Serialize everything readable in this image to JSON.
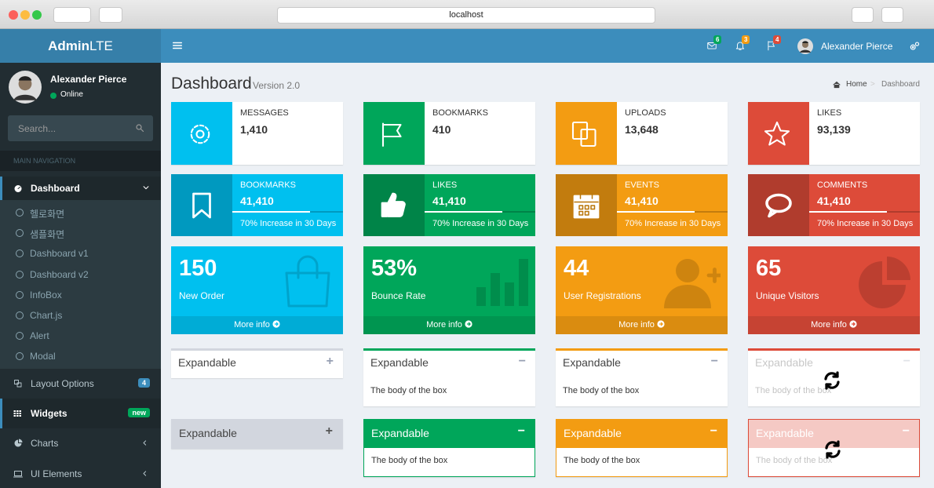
{
  "browser": {
    "url": "localhost"
  },
  "header": {
    "logo_bold": "Admin",
    "logo_light": "LTE",
    "badges": [
      6,
      3,
      4
    ],
    "user": "Alexander Pierce"
  },
  "sidebar": {
    "user_name": "Alexander Pierce",
    "status": "Online",
    "search_placeholder": "Search...",
    "section": "MAIN NAVIGATION",
    "menu": [
      {
        "label": "Dashboard",
        "children": [
          "헬로화면",
          "샘플화면",
          "Dashboard v1",
          "Dashboard v2",
          "InfoBox",
          "Chart.js",
          "Alert",
          "Modal"
        ]
      },
      {
        "label": "Layout Options",
        "badge": 4
      },
      {
        "label": "Widgets",
        "badge": "new"
      },
      {
        "label": "Charts"
      },
      {
        "label": "UI Elements"
      }
    ]
  },
  "page": {
    "title": "Dashboard",
    "subtitle": "Version 2.0",
    "breadcrumb": [
      "Home",
      "Dashboard"
    ]
  },
  "info_boxes": [
    {
      "label": "MESSAGES",
      "value": "1,410"
    },
    {
      "label": "BOOKMARKS",
      "value": "410"
    },
    {
      "label": "UPLOADS",
      "value": "13,648"
    },
    {
      "label": "LIKES",
      "value": "93,139"
    }
  ],
  "progress_boxes": [
    {
      "label": "BOOKMARKS",
      "value": "41,410",
      "description": "70% Increase in 30 Days"
    },
    {
      "label": "LIKES",
      "value": "41,410",
      "description": "70% Increase in 30 Days"
    },
    {
      "label": "EVENTS",
      "value": "41,410",
      "description": "70% Increase in 30 Days"
    },
    {
      "label": "COMMENTS",
      "value": "41,410",
      "description": "70% Increase in 30 Days"
    }
  ],
  "small_boxes": [
    {
      "value": "150",
      "label": "New Order",
      "footer": "More info"
    },
    {
      "value": "53%",
      "label": "Bounce Rate",
      "footer": "More info"
    },
    {
      "value": "44",
      "label": "User Registrations",
      "footer": "More info"
    },
    {
      "value": "65",
      "label": "Unique Visitors",
      "footer": "More info"
    }
  ],
  "boxes": [
    [
      {
        "title": "Expandable"
      },
      {
        "title": "Expandable",
        "body": "The body of the box"
      },
      {
        "title": "Expandable",
        "body": "The body of the box"
      },
      {
        "title": "Expandable",
        "body": "The body of the box"
      }
    ],
    [
      {
        "title": "Expandable"
      },
      {
        "title": "Expandable",
        "body": "The body of the box"
      },
      {
        "title": "Expandable",
        "body": "The body of the box"
      },
      {
        "title": "Expandable",
        "body": "The body of the box"
      }
    ]
  ]
}
